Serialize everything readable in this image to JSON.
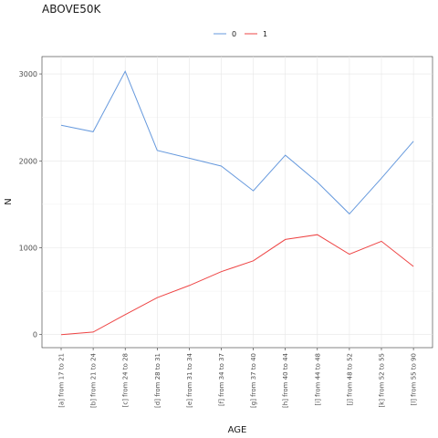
{
  "chart_data": {
    "type": "line",
    "title": "ABOVE50K",
    "xlabel": "AGE",
    "ylabel": "N",
    "categories": [
      "[a] from 17 to 21",
      "[b] from 21 to 24",
      "[c] from 24 to 28",
      "[d] from 28 to 31",
      "[e] from 31 to 34",
      "[f] from 34 to 37",
      "[g] from 37 to 40",
      "[h] from 40 to 44",
      "[i] from 44 to 48",
      "[j] from 48 to 52",
      "[k] from 52 to 55",
      "[l] from 55 to 90"
    ],
    "series": [
      {
        "name": "0",
        "color": "#6699DD",
        "values": [
          2410,
          2335,
          3030,
          2120,
          2030,
          1940,
          1655,
          2065,
          1755,
          1390,
          1800,
          2225
        ]
      },
      {
        "name": "1",
        "color": "#EE4444",
        "values": [
          0,
          30,
          230,
          425,
          565,
          725,
          850,
          1095,
          1150,
          925,
          1075,
          785
        ]
      }
    ],
    "yticks": [
      0,
      1000,
      2000,
      3000
    ],
    "ylim": [
      -150,
      3200
    ],
    "grid": true,
    "legend_position": "top"
  }
}
